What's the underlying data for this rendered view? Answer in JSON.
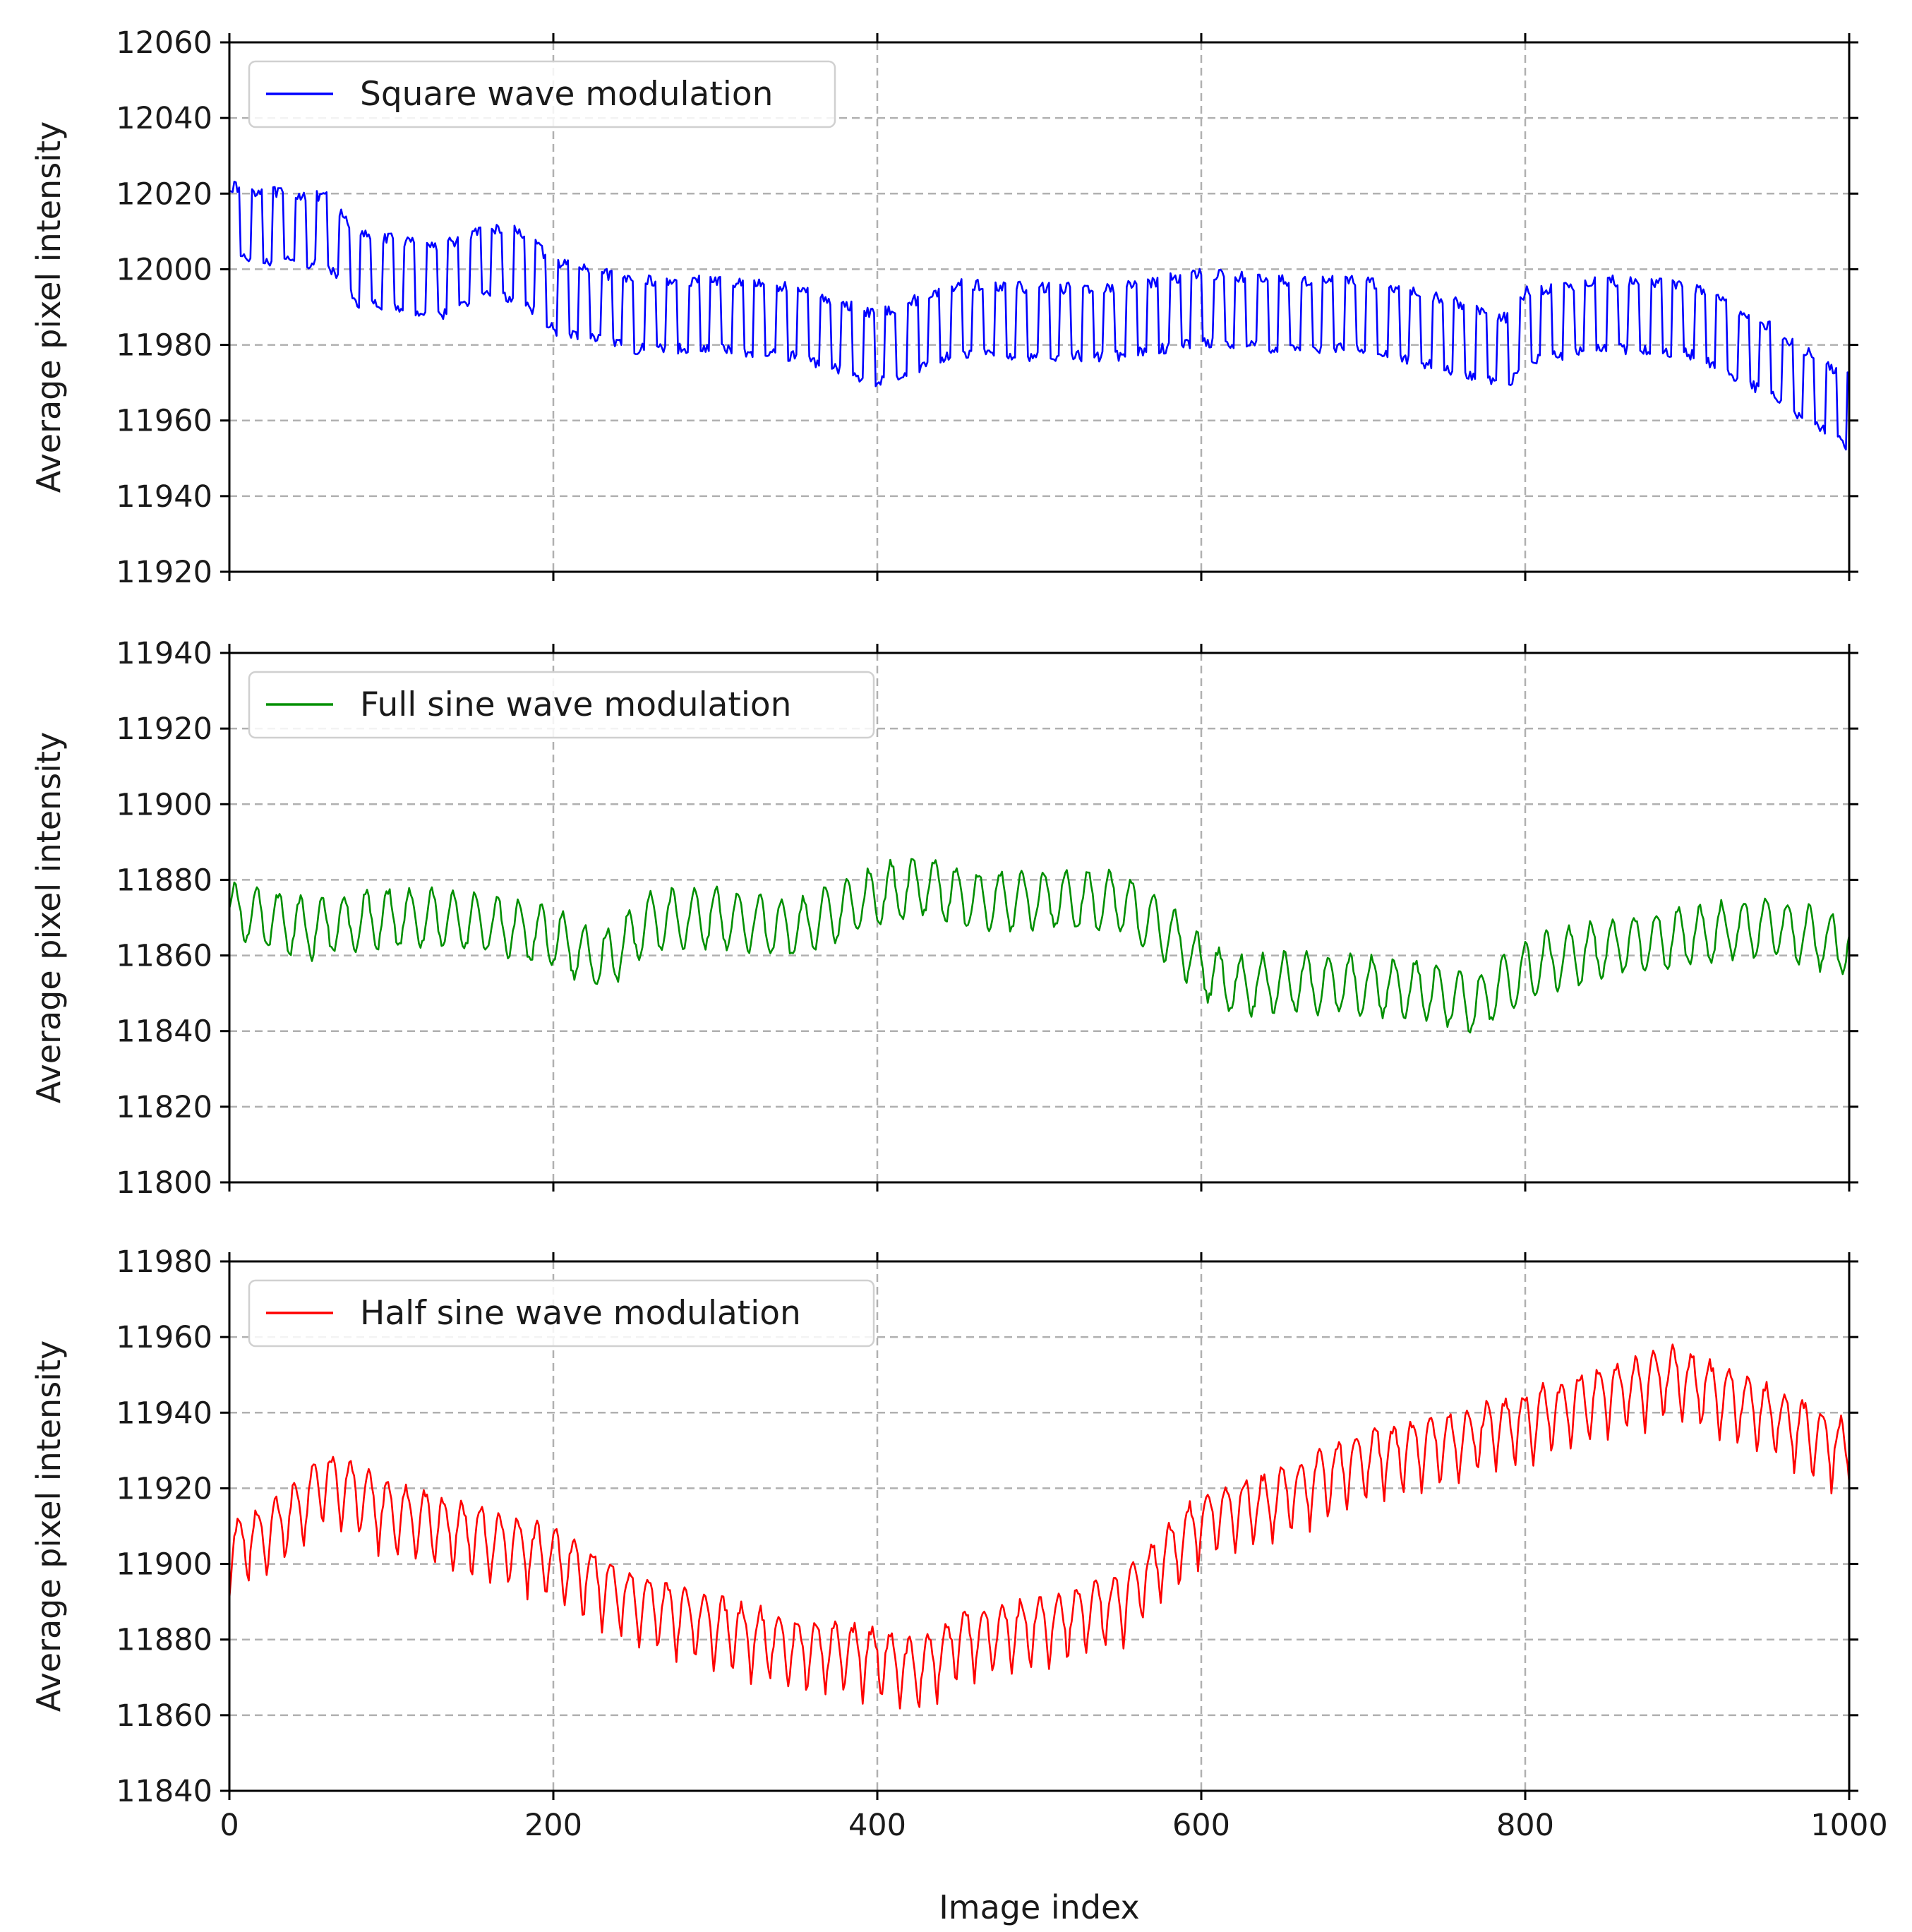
{
  "figure": {
    "xlabel": "Image index",
    "ylabel": "Average pixel intensity",
    "xlim": [
      0,
      1000
    ],
    "xticks": [
      0,
      200,
      400,
      600,
      800,
      1000
    ],
    "grid": true,
    "grid_style": "dashed",
    "shared_x": true
  },
  "chart_data": [
    {
      "type": "line",
      "title": "",
      "legend": "Square wave modulation",
      "legend_position": "upper-left",
      "color": "#0000ff",
      "ylim": [
        11920,
        12060
      ],
      "yticks": [
        11920,
        11940,
        11960,
        11980,
        12000,
        12020,
        12040,
        12060
      ],
      "trend": {
        "x": [
          0,
          10,
          60,
          80,
          100,
          130,
          160,
          180,
          200,
          250,
          300,
          350,
          400,
          450,
          500,
          550,
          600,
          650,
          700,
          750,
          790,
          800,
          850,
          900,
          950,
          1000
        ],
        "y": [
          12013,
          12012,
          12010,
          12000,
          11999,
          11997,
          12002,
          12001,
          11993,
          11988,
          11988,
          11986,
          11979,
          11987,
          11986,
          11986,
          11990,
          11988,
          11988,
          11983,
          11978,
          11985,
          11988,
          11987,
          11976,
          11962
        ]
      },
      "modulation": {
        "shape": "square",
        "period_images": 13.5,
        "amplitude": 9
      }
    },
    {
      "type": "line",
      "title": "",
      "legend": "Full sine wave modulation",
      "legend_position": "upper-left",
      "color": "#008f00",
      "ylim": [
        11800,
        11940
      ],
      "yticks": [
        11800,
        11820,
        11840,
        11860,
        11880,
        11900,
        11920,
        11940
      ],
      "trend": {
        "x": [
          0,
          50,
          100,
          150,
          200,
          230,
          260,
          300,
          350,
          400,
          430,
          460,
          500,
          550,
          580,
          600,
          620,
          650,
          700,
          740,
          770,
          790,
          810,
          850,
          900,
          950,
          1000
        ],
        "y": [
          11872,
          11867,
          11870,
          11869,
          11865,
          11858,
          11869,
          11870,
          11867,
          11876,
          11879,
          11874,
          11875,
          11874,
          11866,
          11857,
          11852,
          11853,
          11852,
          11851,
          11847,
          11853,
          11858,
          11862,
          11865,
          11868,
          11862
        ]
      },
      "modulation": {
        "shape": "sine",
        "period_images": 13.5,
        "amplitude": 7.5
      }
    },
    {
      "type": "line",
      "title": "",
      "legend": "Half sine wave modulation",
      "legend_position": "upper-left",
      "color": "#ff0000",
      "ylim": [
        11840,
        11980
      ],
      "yticks": [
        11840,
        11860,
        11880,
        11900,
        11920,
        11940,
        11960,
        11980
      ],
      "trend": {
        "x": [
          0,
          30,
          60,
          100,
          150,
          200,
          250,
          300,
          350,
          400,
          425,
          450,
          500,
          550,
          600,
          650,
          700,
          750,
          800,
          850,
          890,
          950,
          1000
        ],
        "y": [
          11904,
          11910,
          11922,
          11914,
          11908,
          11902,
          11890,
          11884,
          11878,
          11876,
          11872,
          11880,
          11884,
          11890,
          11912,
          11918,
          11928,
          11932,
          11938,
          11945,
          11950,
          11940,
          11930
        ]
      },
      "modulation": {
        "shape": "half-sine",
        "period_images": 11.5,
        "amplitude": 12
      }
    }
  ]
}
